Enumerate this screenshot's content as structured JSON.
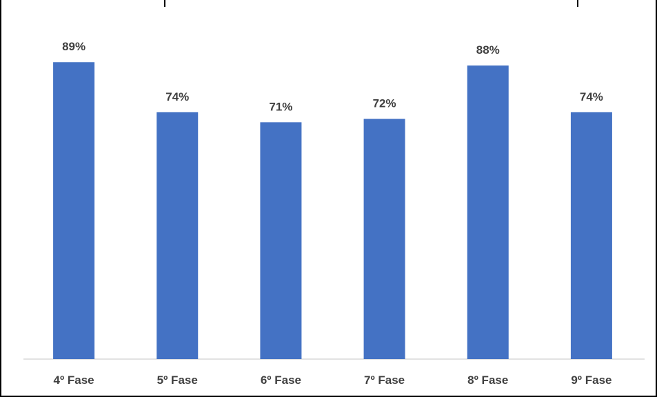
{
  "chart_data": {
    "type": "bar",
    "categories": [
      "4º Fase",
      "5º Fase",
      "6º Fase",
      "7º Fase",
      "8º Fase",
      "9º Fase"
    ],
    "values": [
      89,
      74,
      71,
      72,
      88,
      74
    ],
    "data_labels": [
      "89%",
      "74%",
      "71%",
      "72%",
      "88%",
      "74%"
    ],
    "unit": "%",
    "ylim": [
      0,
      100
    ],
    "grid": false,
    "legend": "none",
    "colors": {
      "bar": "#4472C4",
      "axis": "#D9D9D9",
      "text": "#404040",
      "frame": "#000000"
    }
  }
}
